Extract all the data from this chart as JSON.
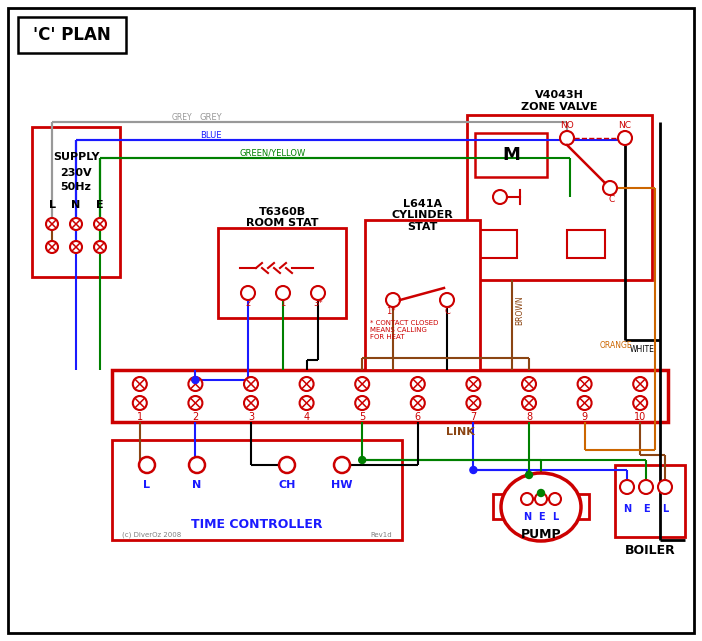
{
  "title": "'C' PLAN",
  "red": "#cc0000",
  "blue": "#1a1aff",
  "green": "#008000",
  "grey": "#999999",
  "brown": "#8B4513",
  "orange": "#cc6600",
  "black": "#000000",
  "zone_valve_label1": "V4043H",
  "zone_valve_label2": "ZONE VALVE",
  "room_stat_label1": "T6360B",
  "room_stat_label2": "ROOM STAT",
  "cyl_stat_label1": "L641A",
  "cyl_stat_label2": "CYLINDER",
  "cyl_stat_label3": "STAT",
  "supply_label": "SUPPLY\n230V\n50Hz",
  "tc_label": "TIME CONTROLLER",
  "pump_label": "PUMP",
  "boiler_label": "BOILER",
  "link_label": "LINK",
  "contact_note": "* CONTACT CLOSED\nMEANS CALLING\nFOR HEAT",
  "copyright": "(c) DiverOz 2008",
  "revid": "Rev1d"
}
